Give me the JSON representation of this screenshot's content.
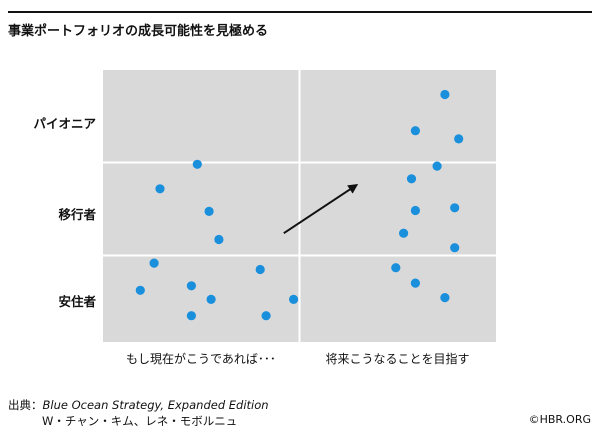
{
  "header": {
    "title": "事業ポートフォリオの成長可能性を見極める"
  },
  "chart_data": {
    "type": "scatter",
    "title": "事業ポートフォリオの成長可能性を見極める",
    "columns": [
      "もし現在がこうであれば･･･",
      "将来こうなることを目指す"
    ],
    "rows": [
      "パイオニア",
      "移行者",
      "安住者"
    ],
    "grid": true,
    "point_color": "#1a8fdc",
    "background_color": "#d9d9d9",
    "series": [
      {
        "column": "もし現在がこうであれば･･･",
        "points": [
          {
            "x": 0.48,
            "y": 1.96
          },
          {
            "x": 0.29,
            "y": 1.69
          },
          {
            "x": 0.54,
            "y": 1.44
          },
          {
            "x": 0.59,
            "y": 1.13
          },
          {
            "x": 0.26,
            "y": 0.87
          },
          {
            "x": 0.8,
            "y": 0.8
          },
          {
            "x": 0.19,
            "y": 0.57
          },
          {
            "x": 0.45,
            "y": 0.62
          },
          {
            "x": 0.55,
            "y": 0.47
          },
          {
            "x": 0.97,
            "y": 0.47
          },
          {
            "x": 0.45,
            "y": 0.29
          },
          {
            "x": 0.83,
            "y": 0.29
          }
        ]
      },
      {
        "column": "将来こうなることを目指す",
        "points": [
          {
            "x": 1.74,
            "y": 2.73
          },
          {
            "x": 1.59,
            "y": 2.33
          },
          {
            "x": 1.81,
            "y": 2.24
          },
          {
            "x": 1.7,
            "y": 1.94
          },
          {
            "x": 1.57,
            "y": 1.8
          },
          {
            "x": 1.79,
            "y": 1.48
          },
          {
            "x": 1.59,
            "y": 1.45
          },
          {
            "x": 1.53,
            "y": 1.2
          },
          {
            "x": 1.79,
            "y": 1.04
          },
          {
            "x": 1.49,
            "y": 0.82
          },
          {
            "x": 1.59,
            "y": 0.65
          },
          {
            "x": 1.74,
            "y": 0.49
          }
        ]
      }
    ],
    "arrow": {
      "from": {
        "x": 0.92,
        "y": 1.2
      },
      "to": {
        "x": 1.29,
        "y": 1.73
      }
    }
  },
  "footer": {
    "source_label": "出典：",
    "source_title": "Blue Ocean Strategy, Expanded Edition",
    "source_authors": "W・チャン・キム、レネ・モボルニュ",
    "credit": "©HBR.ORG"
  }
}
